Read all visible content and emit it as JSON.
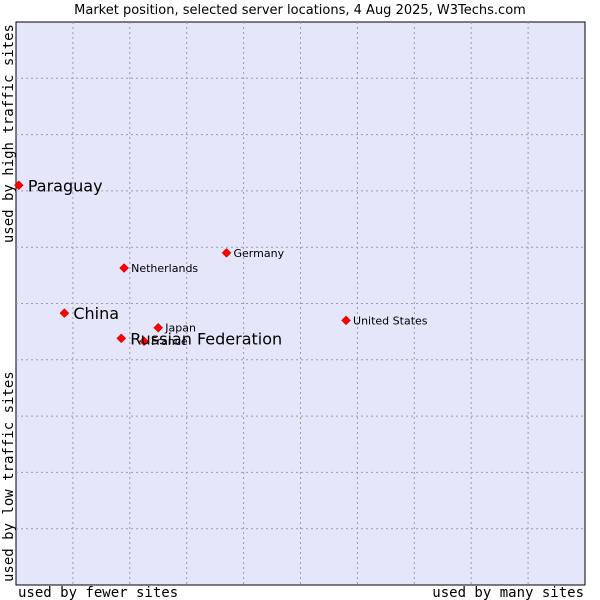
{
  "chart_data": {
    "type": "scatter",
    "title": "Market position, selected server locations, 4 Aug 2025, W3Techs.com",
    "xlabel_low": "used by fewer sites",
    "xlabel_high": "used by many sites",
    "ylabel_low": "used by low traffic sites",
    "ylabel_high": "used by high traffic sites",
    "grid": true,
    "grid_divisions": 10,
    "xlim": [
      0,
      1
    ],
    "ylim": [
      0,
      1
    ],
    "background_color": "#e6e6fa",
    "point_color": "#ff0000",
    "points": [
      {
        "label": "Paraguay",
        "x": 0.005,
        "y": 0.71,
        "emphasis": true
      },
      {
        "label": "Germany",
        "x": 0.37,
        "y": 0.59,
        "emphasis": false
      },
      {
        "label": "Netherlands",
        "x": 0.19,
        "y": 0.563,
        "emphasis": false
      },
      {
        "label": "China",
        "x": 0.085,
        "y": 0.483,
        "emphasis": true
      },
      {
        "label": "United States",
        "x": 0.58,
        "y": 0.47,
        "emphasis": false
      },
      {
        "label": "Japan",
        "x": 0.25,
        "y": 0.457,
        "emphasis": false
      },
      {
        "label": "France",
        "x": 0.225,
        "y": 0.433,
        "emphasis": false
      },
      {
        "label": "Russian Federation",
        "x": 0.185,
        "y": 0.438,
        "emphasis": true
      }
    ]
  }
}
